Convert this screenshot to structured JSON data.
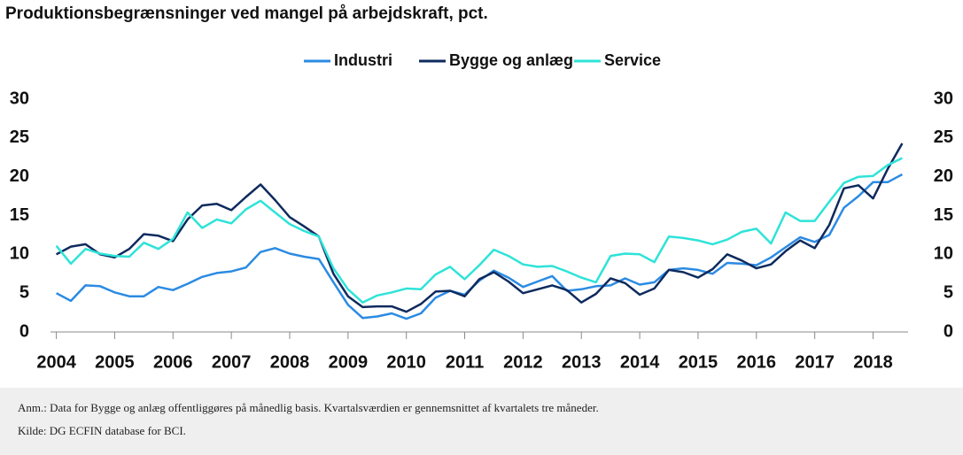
{
  "chart_data": {
    "type": "line",
    "title": "Produktionsbegrænsninger ved mangel på arbejdskraft, pct.",
    "x": [
      2004,
      2004.25,
      2004.5,
      2004.75,
      2005,
      2005.25,
      2005.5,
      2005.75,
      2006,
      2006.25,
      2006.5,
      2006.75,
      2007,
      2007.25,
      2007.5,
      2007.75,
      2008,
      2008.25,
      2008.5,
      2008.75,
      2009,
      2009.25,
      2009.5,
      2009.75,
      2010,
      2010.25,
      2010.5,
      2010.75,
      2011,
      2011.25,
      2011.5,
      2011.75,
      2012,
      2012.25,
      2012.5,
      2012.75,
      2013,
      2013.25,
      2013.5,
      2013.75,
      2014,
      2014.25,
      2014.5,
      2014.75,
      2015,
      2015.25,
      2015.5,
      2015.75,
      2016,
      2016.25,
      2016.5,
      2016.75,
      2017,
      2017.25,
      2017.5,
      2017.75,
      2018,
      2018.25,
      2018.5
    ],
    "series": [
      {
        "name": "Industri",
        "color": "#2b8be3",
        "values": [
          5.0,
          4.0,
          6.0,
          5.9,
          5.1,
          4.6,
          4.6,
          5.8,
          5.4,
          6.2,
          7.1,
          7.6,
          7.8,
          8.3,
          10.3,
          10.8,
          10.1,
          9.7,
          9.4,
          6.4,
          3.5,
          1.8,
          2.0,
          2.4,
          1.7,
          2.4,
          4.4,
          5.3,
          4.8,
          6.6,
          7.9,
          7.0,
          5.8,
          6.5,
          7.2,
          5.3,
          5.5,
          5.9,
          6.0,
          6.9,
          6.1,
          6.4,
          8.0,
          8.2,
          8.0,
          7.5,
          8.9,
          8.8,
          8.6,
          9.6,
          10.9,
          12.2,
          11.6,
          12.5,
          16.0,
          17.5,
          19.3,
          19.3,
          20.3
        ]
      },
      {
        "name": "Bygge og anlæg",
        "color": "#0e2a5e",
        "values": [
          10.0,
          11.0,
          11.3,
          10.0,
          9.6,
          10.7,
          12.6,
          12.4,
          11.7,
          14.5,
          16.3,
          16.5,
          15.7,
          17.4,
          19.0,
          17.0,
          14.8,
          13.6,
          12.3,
          7.5,
          4.6,
          3.2,
          3.3,
          3.3,
          2.6,
          3.6,
          5.2,
          5.3,
          4.6,
          6.8,
          7.7,
          6.5,
          5.0,
          5.5,
          6.0,
          5.4,
          3.8,
          4.9,
          6.9,
          6.3,
          4.8,
          5.6,
          8.0,
          7.7,
          7.0,
          8.1,
          10.0,
          9.2,
          8.2,
          8.7,
          10.4,
          11.8,
          10.8,
          13.8,
          18.5,
          18.9,
          17.2,
          21.0,
          24.3
        ]
      },
      {
        "name": "Service",
        "color": "#2ee3d8",
        "values": [
          11.1,
          8.8,
          10.7,
          10.1,
          9.8,
          9.7,
          11.5,
          10.7,
          12.0,
          15.4,
          13.4,
          14.5,
          14.0,
          15.8,
          16.9,
          15.4,
          13.9,
          13.0,
          12.3,
          8.2,
          5.5,
          3.8,
          4.7,
          5.1,
          5.6,
          5.5,
          7.4,
          8.4,
          6.8,
          8.6,
          10.6,
          9.8,
          8.7,
          8.4,
          8.5,
          7.8,
          7.0,
          6.4,
          9.8,
          10.1,
          10.0,
          9.0,
          12.3,
          12.1,
          11.8,
          11.3,
          11.9,
          12.9,
          13.3,
          11.4,
          15.4,
          14.3,
          14.3,
          16.8,
          19.2,
          20.0,
          20.1,
          21.5,
          22.4
        ]
      }
    ],
    "xlim": [
      2003.9,
      2018.6
    ],
    "xticks": [
      2004,
      2005,
      2006,
      2007,
      2008,
      2009,
      2010,
      2011,
      2012,
      2013,
      2014,
      2015,
      2016,
      2017,
      2018
    ],
    "ylim": [
      0,
      30
    ],
    "yticks": [
      0,
      5,
      10,
      15,
      20,
      25,
      30
    ],
    "legend": "top",
    "note": "Anm.: Data for Bygge og anlæg offentliggøres på månedlig basis. Kvartalsværdien er gennemsnittet af kvartalets tre måneder.",
    "source": "Kilde: DG ECFIN database for BCI."
  }
}
